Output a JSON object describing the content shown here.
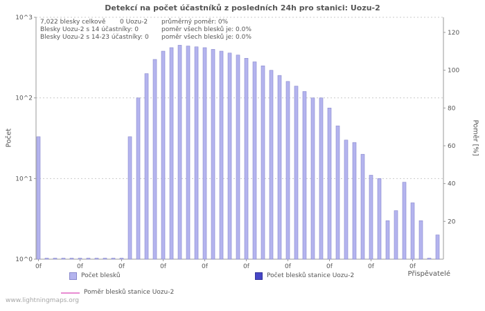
{
  "title": "Detekcí na počet účastníků z posledních 24h pro stanici: Uozu-2",
  "watermark": "www.lightningmaps.org",
  "annotation": {
    "rows": [
      {
        "col1": "7,022 blesky celkově",
        "col2": "0 Uozu-2",
        "col3": "průměrný poměr: 0%"
      },
      {
        "col1": "Blesky Uozu-2 s 14 účastníky: 0",
        "col3": "poměr všech blesků je: 0.0%"
      },
      {
        "col1": "Blesky Uozu-2 s 14-23 účastníky: 0",
        "col3": "poměr všech blesků je: 0.0%"
      }
    ]
  },
  "axes": {
    "left_label": "Počet",
    "right_label": "Poměr [%]",
    "x_label": "Přispěvatelé",
    "left_ticks": [
      "10^0",
      "10^1",
      "10^2",
      "10^3"
    ],
    "right_ticks": [
      20,
      40,
      60,
      80,
      100,
      120
    ],
    "x_tick_label": "0f"
  },
  "legend": {
    "items": [
      {
        "label": "Počet blesků",
        "type": "bar",
        "color": "#b4b4ee",
        "border": "#8888cc"
      },
      {
        "label": "Počet blesků stanice Uozu-2",
        "type": "bar",
        "color": "#4646c6",
        "border": "#333399"
      },
      {
        "label": "Poměr blesků stanice Uozu-2",
        "type": "line",
        "color": "#e88ad2"
      }
    ]
  },
  "chart_data": {
    "type": "bar",
    "title": "Detekcí na počet účastníků z posledních 24h pro stanici: Uozu-2",
    "xlabel": "Přispěvatelé",
    "ylabel": "Počet",
    "y2label": "Poměr [%]",
    "y_scale": "log",
    "ylim": [
      1,
      1000
    ],
    "y2lim": [
      0,
      128
    ],
    "grid": "horizontal-dotted-decades",
    "legend_position": "bottom",
    "total_strikes": "7,022",
    "station_strikes": 0,
    "average_ratio_pct": 0,
    "series": [
      {
        "name": "Počet blesků",
        "type": "bar",
        "color": "#b4b4ee",
        "border": "#8888cc",
        "values": [
          33,
          1,
          1,
          1,
          1,
          1,
          1,
          1,
          1,
          1,
          1,
          33,
          100,
          200,
          300,
          380,
          420,
          450,
          440,
          430,
          420,
          400,
          380,
          360,
          340,
          310,
          280,
          250,
          220,
          190,
          160,
          140,
          120,
          100,
          100,
          75,
          45,
          30,
          28,
          20,
          11,
          10,
          3,
          4,
          9,
          5,
          3,
          1,
          2
        ]
      },
      {
        "name": "Počet blesků stanice Uozu-2",
        "type": "bar",
        "color": "#4646c6",
        "values": [
          0,
          0,
          0,
          0,
          0,
          0,
          0,
          0,
          0,
          0,
          0,
          0,
          0,
          0,
          0,
          0,
          0,
          0,
          0,
          0,
          0,
          0,
          0,
          0,
          0,
          0,
          0,
          0,
          0,
          0,
          0,
          0,
          0,
          0,
          0,
          0,
          0,
          0,
          0,
          0,
          0,
          0,
          0,
          0,
          0,
          0,
          0,
          0,
          0
        ]
      },
      {
        "name": "Poměr blesků stanice Uozu-2",
        "type": "line",
        "color": "#e88ad2",
        "values": [
          0,
          0,
          0,
          0,
          0,
          0,
          0,
          0,
          0,
          0,
          0,
          0,
          0,
          0,
          0,
          0,
          0,
          0,
          0,
          0,
          0,
          0,
          0,
          0,
          0,
          0,
          0,
          0,
          0,
          0,
          0,
          0,
          0,
          0,
          0,
          0,
          0,
          0,
          0,
          0,
          0,
          0,
          0,
          0,
          0,
          0,
          0,
          0,
          0
        ]
      }
    ]
  }
}
